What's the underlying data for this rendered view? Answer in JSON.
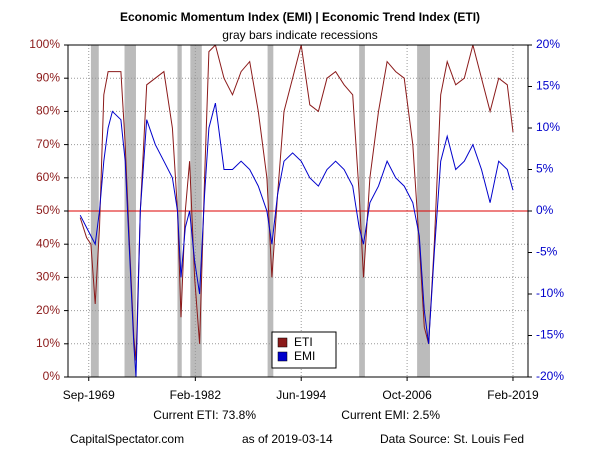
{
  "chart_data": {
    "type": "line",
    "title": "Economic Momentum Index (EMI) | Economic Trend Index (ETI)",
    "subtitle": "gray bars indicate recessions",
    "x": [
      "1968-09",
      "1969-06",
      "1969-12",
      "1970-06",
      "1970-12",
      "1971-06",
      "1971-12",
      "1972-06",
      "1973-06",
      "1973-12",
      "1974-06",
      "1974-12",
      "1975-03",
      "1975-09",
      "1976-06",
      "1977-06",
      "1978-06",
      "1979-06",
      "1980-01",
      "1980-06",
      "1980-12",
      "1981-06",
      "1982-01",
      "1982-08",
      "1983-03",
      "1983-09",
      "1984-06",
      "1985-06",
      "1986-06",
      "1987-06",
      "1988-06",
      "1989-06",
      "1990-06",
      "1991-01",
      "1991-09",
      "1992-06",
      "1993-06",
      "1994-06",
      "1995-06",
      "1996-06",
      "1997-06",
      "1998-06",
      "1999-06",
      "2000-06",
      "2001-03",
      "2001-09",
      "2002-06",
      "2003-06",
      "2004-06",
      "2005-06",
      "2006-06",
      "2007-06",
      "2008-03",
      "2008-10",
      "2009-04",
      "2009-12",
      "2010-09",
      "2011-06",
      "2012-06",
      "2013-06",
      "2014-06",
      "2015-06",
      "2016-06",
      "2017-06",
      "2018-06",
      "2019-02"
    ],
    "series": [
      {
        "name": "ETI",
        "color": "#8b1a1a",
        "axis": "y",
        "values": [
          48,
          42,
          40,
          22,
          45,
          85,
          92,
          92,
          92,
          70,
          40,
          12,
          5,
          50,
          88,
          90,
          92,
          75,
          50,
          18,
          50,
          65,
          30,
          10,
          60,
          98,
          100,
          90,
          85,
          92,
          95,
          80,
          60,
          30,
          55,
          80,
          90,
          100,
          82,
          80,
          90,
          92,
          88,
          85,
          55,
          30,
          60,
          80,
          95,
          92,
          90,
          70,
          40,
          15,
          10,
          40,
          85,
          95,
          88,
          90,
          100,
          90,
          80,
          90,
          88,
          73.8
        ]
      },
      {
        "name": "EMI",
        "color": "#0000cc",
        "axis": "y2",
        "values": [
          -0.5,
          -2,
          -3,
          -4,
          0,
          6,
          10,
          12,
          11,
          6,
          -5,
          -16,
          -20,
          0,
          11,
          8,
          6,
          4,
          0,
          -8,
          -2,
          0,
          -6,
          -10,
          2,
          10,
          13,
          5,
          5,
          6,
          5,
          3,
          0,
          -4,
          2,
          6,
          7,
          6,
          4,
          3,
          5,
          6,
          5,
          3,
          -2,
          -4,
          1,
          3,
          6,
          4,
          3,
          1,
          -3,
          -12,
          -16,
          -5,
          6,
          9,
          5,
          6,
          8,
          5,
          1,
          6,
          5,
          2.5
        ]
      }
    ],
    "xlim": [
      "1967-04",
      "2020-11"
    ],
    "xticks": [
      {
        "value": "1969-09",
        "label": "Sep-1969"
      },
      {
        "value": "1982-02",
        "label": "Feb-1982"
      },
      {
        "value": "1994-06",
        "label": "Jun-1994"
      },
      {
        "value": "2006-10",
        "label": "Oct-2006"
      },
      {
        "value": "2019-02",
        "label": "Feb-2019"
      }
    ],
    "ylim": [
      0,
      100
    ],
    "yticks": [
      {
        "value": 0,
        "label": "0%"
      },
      {
        "value": 10,
        "label": "10%"
      },
      {
        "value": 20,
        "label": "20%"
      },
      {
        "value": 30,
        "label": "30%"
      },
      {
        "value": 40,
        "label": "40%"
      },
      {
        "value": 50,
        "label": "50%"
      },
      {
        "value": 60,
        "label": "60%"
      },
      {
        "value": 70,
        "label": "70%"
      },
      {
        "value": 80,
        "label": "80%"
      },
      {
        "value": 90,
        "label": "90%"
      },
      {
        "value": 100,
        "label": "100%"
      }
    ],
    "y2lim": [
      -20,
      20
    ],
    "y2ticks": [
      {
        "value": -20,
        "label": "-20%"
      },
      {
        "value": -15,
        "label": "-15%"
      },
      {
        "value": -10,
        "label": "-10%"
      },
      {
        "value": -5,
        "label": "-5%"
      },
      {
        "value": 0,
        "label": "0%"
      },
      {
        "value": 5,
        "label": "5%"
      },
      {
        "value": 10,
        "label": "10%"
      },
      {
        "value": 15,
        "label": "15%"
      },
      {
        "value": 20,
        "label": "20%"
      }
    ],
    "recessions": [
      [
        "1969-12",
        "1970-11"
      ],
      [
        "1973-11",
        "1975-03"
      ],
      [
        "1980-01",
        "1980-07"
      ],
      [
        "1981-07",
        "1982-11"
      ],
      [
        "1990-07",
        "1991-03"
      ],
      [
        "2001-03",
        "2001-11"
      ],
      [
        "2007-12",
        "2009-06"
      ]
    ],
    "reference_line": {
      "value": 50,
      "color": "#dd0000"
    },
    "grid": true,
    "legend": "bottom",
    "annotations": [
      "Current ETI:  73.8%",
      "Current EMI:  2.5%",
      "CapitalSpectator.com",
      "as of 2019-03-14",
      "Data Source: St. Louis Fed"
    ]
  }
}
